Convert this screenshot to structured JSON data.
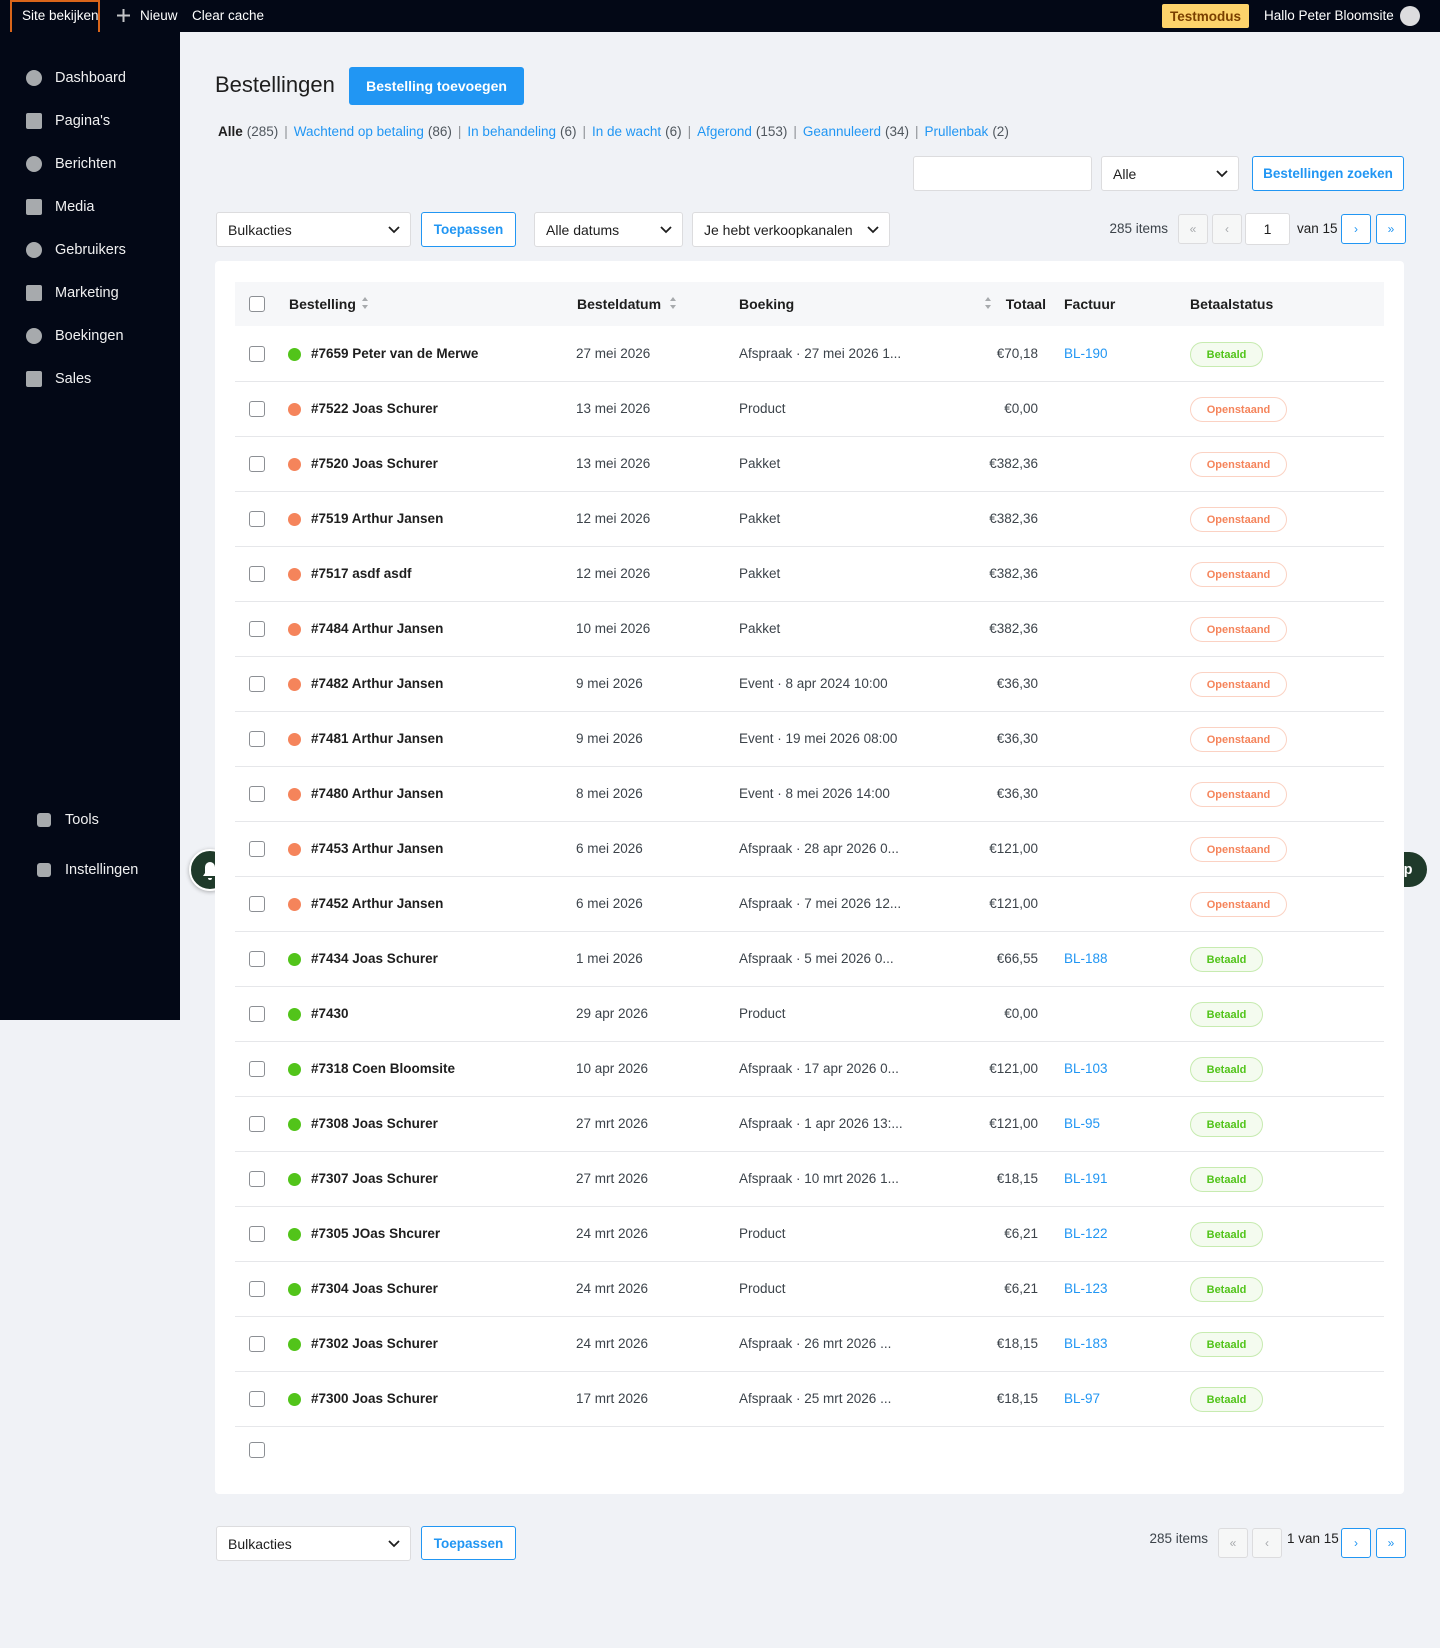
{
  "topbar": {
    "site": "Site bekijken",
    "new": "Nieuw",
    "cache": "Clear cache",
    "mode": "Testmodus",
    "greeting": "Hallo Peter Bloomsite"
  },
  "sidebar": {
    "menu": [
      "Dashboard",
      "Pagina's",
      "Berichten",
      "Media",
      "Gebruikers",
      "Marketing",
      "Boekingen",
      "Sales"
    ],
    "bottom": [
      "Tools",
      "Instellingen"
    ]
  },
  "header": {
    "title": "Bestellingen",
    "add_button": "Bestelling toevoegen"
  },
  "filters": [
    {
      "label": "Alle",
      "count": "(285)"
    },
    {
      "label": "Wachtend op betaling",
      "count": "(86)"
    },
    {
      "label": "In behandeling",
      "count": "(6)"
    },
    {
      "label": "In de wacht",
      "count": "(6)"
    },
    {
      "label": "Afgerond",
      "count": "(153)"
    },
    {
      "label": "Geannuleerd",
      "count": "(34)"
    },
    {
      "label": "Prullenbak",
      "count": "(2)"
    }
  ],
  "search": {
    "select": "Alle",
    "button": "Bestellingen zoeken"
  },
  "toolbar": {
    "bulk": "Bulkacties",
    "apply": "Toepassen",
    "dates": "Alle datums",
    "channels": "Je hebt verkoopkanalen",
    "items": "285 items",
    "page": "1",
    "of": "van 15"
  },
  "nav": [
    "«",
    "‹",
    "›",
    "»"
  ],
  "table": {
    "columns": [
      "Bestelling",
      "Besteldatum",
      "Boeking",
      "Totaal",
      "Factuur",
      "Betaalstatus"
    ],
    "rows": [
      {
        "order": "#7659 Peter van de Merwe",
        "date": "27 mei 2026",
        "booking": "Afspraak · 27 mei 2026 1...",
        "total": "€70,18",
        "invoice": "BL-190",
        "status": "Betaald",
        "color": "#52c41a"
      },
      {
        "order": "#7522 Joas Schurer",
        "date": "13 mei 2026",
        "booking": "Product",
        "total": "€0,00",
        "status": "Openstaand",
        "color": "#f5845b"
      },
      {
        "order": "#7520 Joas Schurer",
        "date": "13 mei 2026",
        "booking": "Pakket",
        "total": "€382,36",
        "status": "Openstaand",
        "color": "#f5845b"
      },
      {
        "order": "#7519 Arthur Jansen",
        "date": "12 mei 2026",
        "booking": "Pakket",
        "total": "€382,36",
        "status": "Openstaand",
        "color": "#f5845b"
      },
      {
        "order": "#7517 asdf asdf",
        "date": "12 mei 2026",
        "booking": "Pakket",
        "total": "€382,36",
        "status": "Openstaand",
        "color": "#f5845b"
      },
      {
        "order": "#7484 Arthur Jansen",
        "date": "10 mei 2026",
        "booking": "Pakket",
        "total": "€382,36",
        "status": "Openstaand",
        "color": "#f5845b"
      },
      {
        "order": "#7482 Arthur Jansen",
        "date": "9 mei 2026",
        "booking": "Event · 8 apr 2024 10:00",
        "total": "€36,30",
        "status": "Openstaand",
        "color": "#f5845b"
      },
      {
        "order": "#7481 Arthur Jansen",
        "date": "9 mei 2026",
        "booking": "Event · 19 mei 2026 08:00",
        "total": "€36,30",
        "status": "Openstaand",
        "color": "#f5845b"
      },
      {
        "order": "#7480 Arthur Jansen",
        "date": "8 mei 2026",
        "booking": "Event · 8 mei 2026 14:00",
        "total": "€36,30",
        "status": "Openstaand",
        "color": "#f5845b"
      },
      {
        "order": "#7453 Arthur Jansen",
        "date": "6 mei 2026",
        "booking": "Afspraak · 28 apr 2026 0...",
        "total": "€121,00",
        "status": "Openstaand",
        "color": "#f5845b"
      },
      {
        "order": "#7452 Arthur Jansen",
        "date": "6 mei 2026",
        "booking": "Afspraak · 7 mei 2026 12...",
        "total": "€121,00",
        "status": "Openstaand",
        "color": "#f5845b"
      },
      {
        "order": "#7434 Joas Schurer",
        "date": "1 mei 2026",
        "booking": "Afspraak · 5 mei 2026 0...",
        "total": "€66,55",
        "invoice": "BL-188",
        "status": "Betaald",
        "color": "#52c41a"
      },
      {
        "order": "#7430",
        "date": "29 apr 2026",
        "booking": "Product",
        "total": "€0,00",
        "status": "Betaald",
        "color": "#52c41a"
      },
      {
        "order": "#7318 Coen Bloomsite",
        "date": "10 apr 2026",
        "booking": "Afspraak · 17 apr 2026 0...",
        "total": "€121,00",
        "invoice": "BL-103",
        "status": "Betaald",
        "color": "#52c41a"
      },
      {
        "order": "#7308 Joas Schurer",
        "date": "27 mrt 2026",
        "booking": "Afspraak · 1 apr 2026 13:...",
        "total": "€121,00",
        "invoice": "BL-95",
        "status": "Betaald",
        "color": "#52c41a"
      },
      {
        "order": "#7307 Joas Schurer",
        "date": "27 mrt 2026",
        "booking": "Afspraak · 10 mrt 2026 1...",
        "total": "€18,15",
        "invoice": "BL-191",
        "status": "Betaald",
        "color": "#52c41a"
      },
      {
        "order": "#7305 JOas Shcurer",
        "date": "24 mrt 2026",
        "booking": "Product",
        "total": "€6,21",
        "invoice": "BL-122",
        "status": "Betaald",
        "color": "#52c41a"
      },
      {
        "order": "#7304 Joas Schurer",
        "date": "24 mrt 2026",
        "booking": "Product",
        "total": "€6,21",
        "invoice": "BL-123",
        "status": "Betaald",
        "color": "#52c41a"
      },
      {
        "order": "#7302 Joas Schurer",
        "date": "24 mrt 2026",
        "booking": "Afspraak · 26 mrt 2026 ...",
        "total": "€18,15",
        "invoice": "BL-183",
        "status": "Betaald",
        "color": "#52c41a"
      },
      {
        "order": "#7300 Joas Schurer",
        "date": "17 mrt 2026",
        "booking": "Afspraak · 25 mrt 2026 ...",
        "total": "€18,15",
        "invoice": "BL-97",
        "status": "Betaald",
        "color": "#52c41a"
      }
    ]
  },
  "footer": {
    "bulk": "Bulkacties",
    "apply": "Toepassen",
    "items": "285 items",
    "page_of": "1 van 15"
  },
  "help": "Help"
}
